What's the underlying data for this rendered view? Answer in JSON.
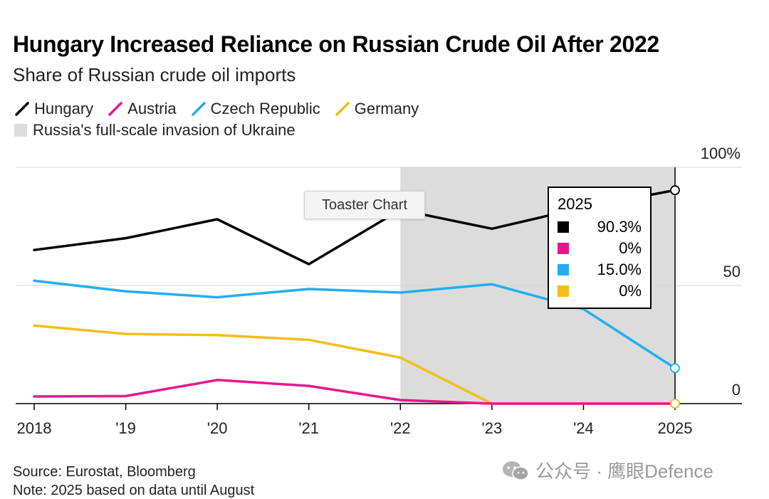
{
  "title": "Hungary Increased Reliance on Russian Crude Oil After 2022",
  "subtitle": "Share of Russian crude oil imports",
  "legend": {
    "series": [
      {
        "label": "Hungary",
        "color": "#000000"
      },
      {
        "label": "Austria",
        "color": "#e6178f"
      },
      {
        "label": "Czech Republic",
        "color": "#22aef0"
      },
      {
        "label": "Germany",
        "color": "#f5bd1a"
      }
    ],
    "shade_label": "Russia's full-scale invasion of Ukraine",
    "shade_color": "#dcdcdc"
  },
  "toaster": {
    "label": "Toaster Chart"
  },
  "tooltip": {
    "year": "2025",
    "rows": [
      {
        "color": "#000000",
        "value": "90.3%"
      },
      {
        "color": "#e6178f",
        "value": "0%"
      },
      {
        "color": "#22aef0",
        "value": "15.0%"
      },
      {
        "color": "#f5bd1a",
        "value": "0%"
      }
    ]
  },
  "footer": {
    "source": "Source: Eurostat, Bloomberg",
    "note": "Note: 2025 based on data until August"
  },
  "watermark": {
    "text": "公众号 · 鹰眼Defence"
  },
  "chart_data": {
    "type": "line",
    "title": "Hungary Increased Reliance on Russian Crude Oil After 2022",
    "subtitle": "Share of Russian crude oil imports",
    "x": [
      2018,
      2019,
      2020,
      2021,
      2022,
      2023,
      2024,
      2025
    ],
    "x_tick_labels": [
      "2018",
      "'19",
      "'20",
      "'21",
      "'22",
      "'23",
      "'24",
      "2025"
    ],
    "y_ticks": [
      {
        "value": 100,
        "label": "100%"
      },
      {
        "value": 50,
        "label": "50"
      },
      {
        "value": 0,
        "label": "0"
      }
    ],
    "ylim": [
      0,
      100
    ],
    "grid": "horizontal",
    "shaded_region": {
      "x_start": 2022,
      "x_end": 2025,
      "label": "Russia's full-scale invasion of Ukraine"
    },
    "series": [
      {
        "name": "Hungary",
        "color": "#000000",
        "values": [
          65,
          70,
          78,
          59,
          82,
          74,
          83,
          90.3
        ]
      },
      {
        "name": "Austria",
        "color": "#e6178f",
        "values": [
          3,
          3.2,
          10,
          7.5,
          1.5,
          0,
          0,
          0
        ]
      },
      {
        "name": "Czech Republic",
        "color": "#22aef0",
        "values": [
          52,
          47.5,
          45,
          48.5,
          47,
          50.5,
          40,
          15.0
        ]
      },
      {
        "name": "Germany",
        "color": "#f5bd1a",
        "values": [
          33,
          29.5,
          29,
          27,
          19.5,
          0,
          null,
          0
        ]
      }
    ]
  }
}
